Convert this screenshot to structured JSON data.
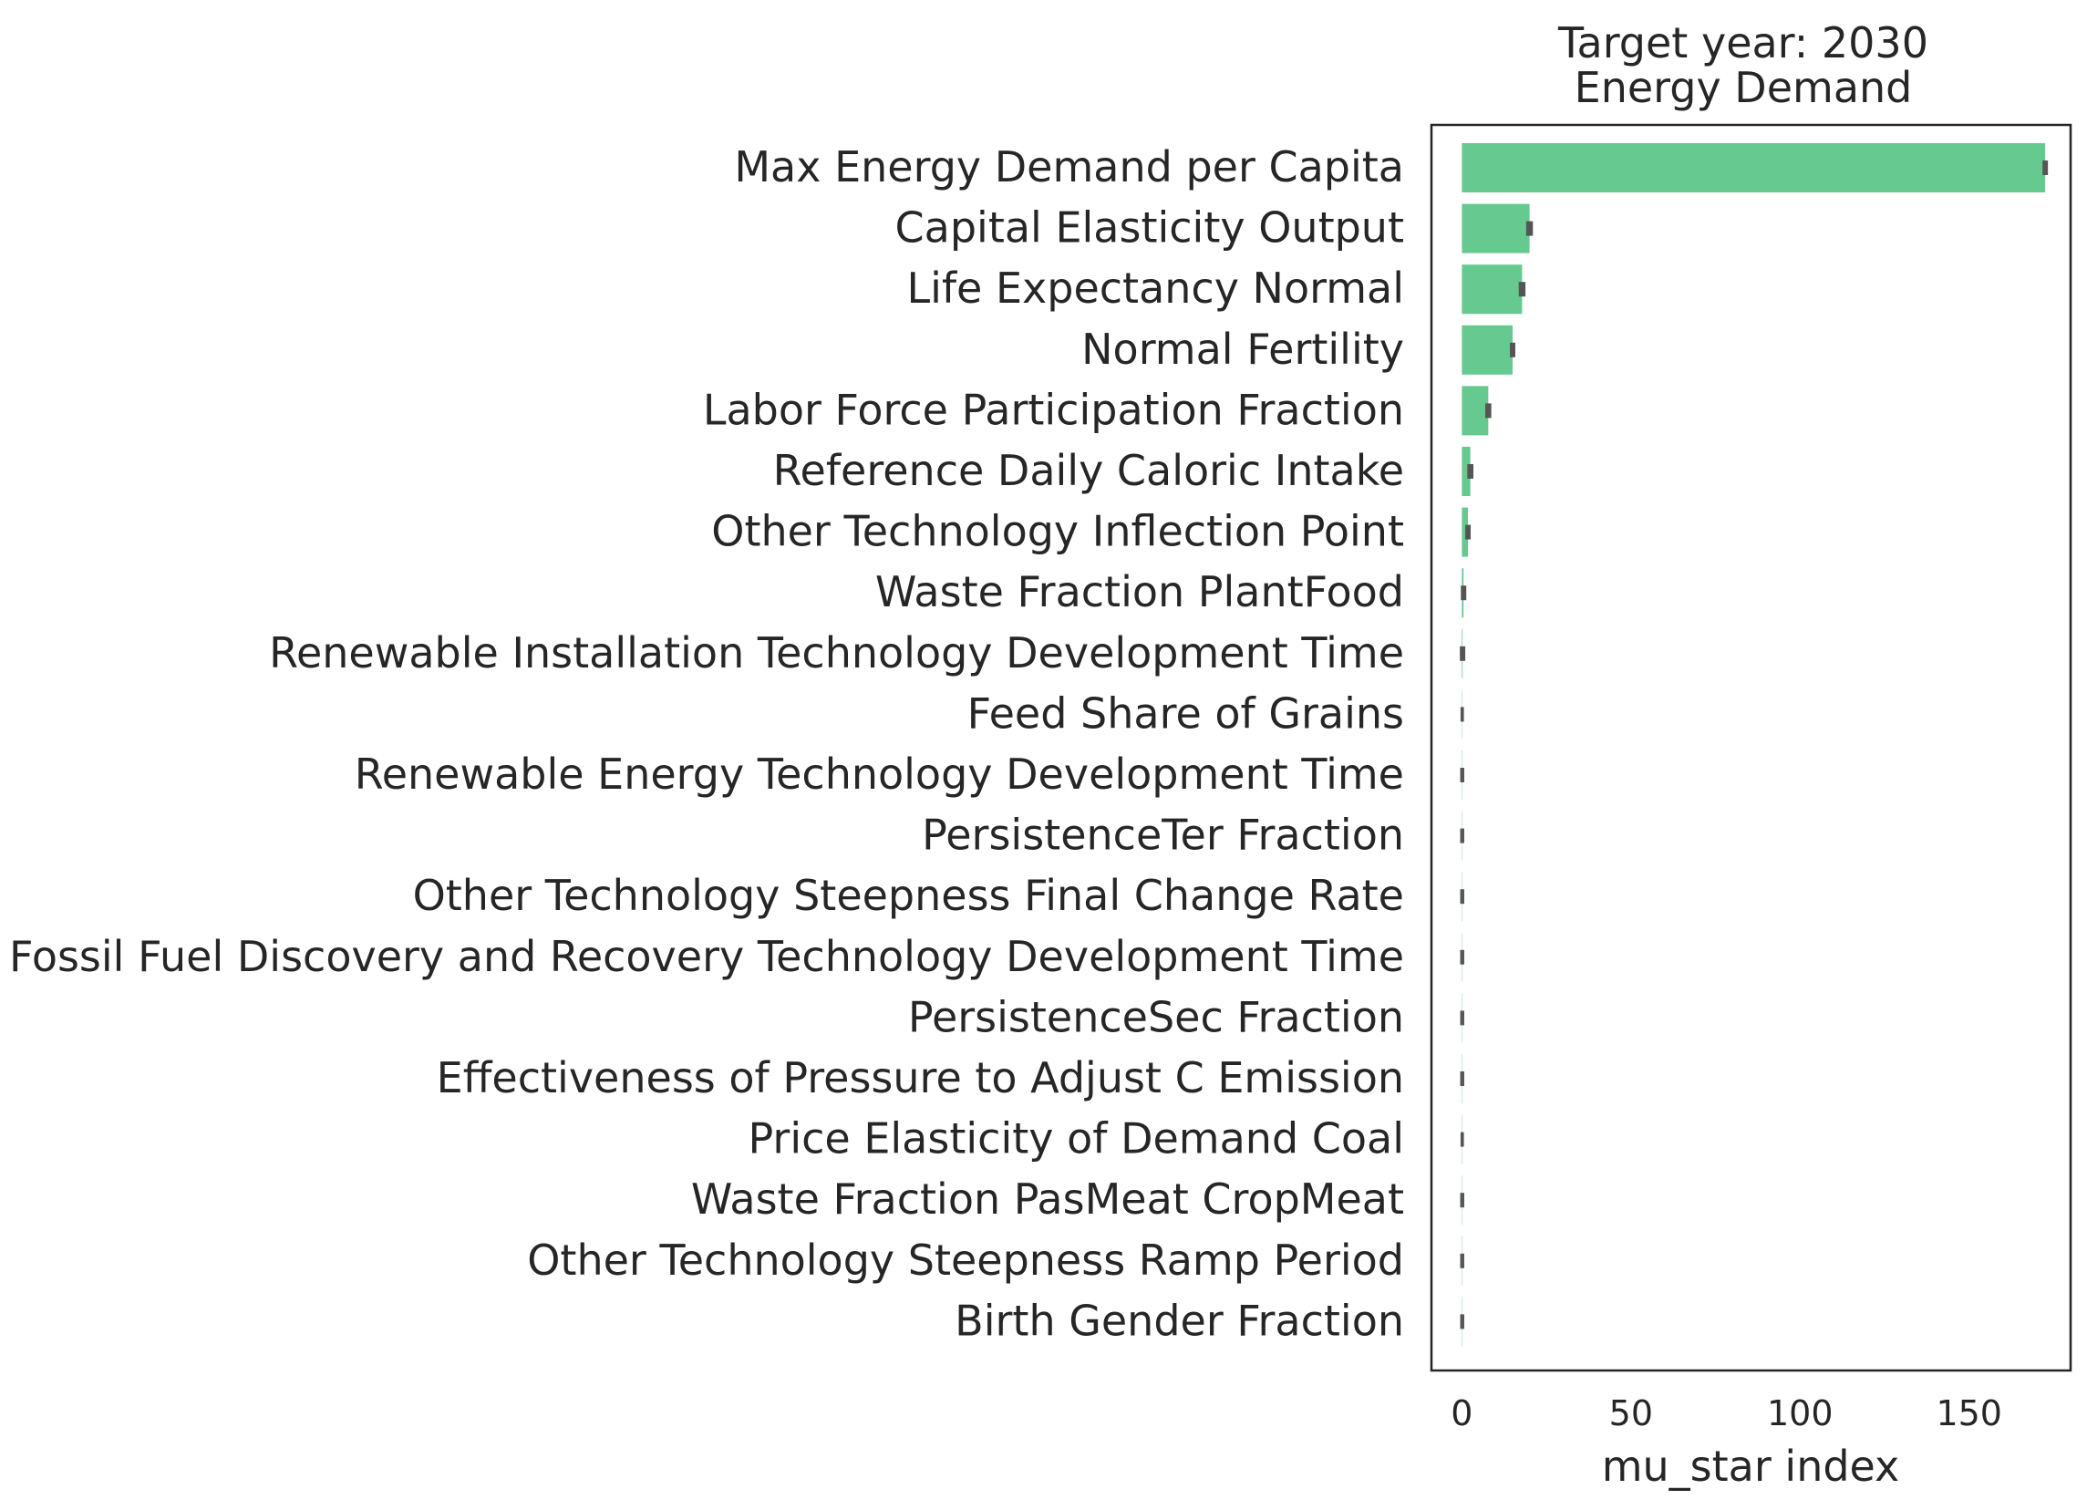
{
  "chart_data": {
    "type": "bar",
    "orientation": "horizontal",
    "title": "Target year: 2030",
    "subtitle": "Energy Demand",
    "xlabel": "mu_star index",
    "ylabel": "",
    "xlim": [
      -9,
      180
    ],
    "xticks": [
      0,
      50,
      100,
      150
    ],
    "grid": false,
    "bar_color": "#66c990",
    "error_color": "#555555",
    "categories": [
      "Max Energy Demand per Capita",
      "Capital Elasticity Output",
      "Life Expectancy Normal",
      "Normal Fertility",
      "Labor Force Participation Fraction",
      "Reference Daily Caloric Intake",
      "Other Technology Inflection Point",
      "Waste Fraction PlantFood",
      "Renewable Installation Technology Development Time",
      "Feed Share of Grains",
      "Renewable Energy Technology Development Time",
      "PersistenceTer Fraction",
      "Other Technology Steepness Final Change Rate",
      "Fossil Fuel Discovery and Recovery Technology Development Time",
      "PersistenceSec Fraction",
      "Effectiveness of Pressure to Adjust C Emission",
      "Price Elasticity of Demand Coal",
      "Waste Fraction PasMeat CropMeat",
      "Other Technology Steepness Ramp Period",
      "Birth Gender Fraction"
    ],
    "values": [
      172.5,
      20.0,
      17.8,
      15.0,
      7.8,
      2.5,
      1.8,
      0.5,
      0.2,
      0.1,
      0.1,
      0.1,
      0.1,
      0.1,
      0.1,
      0.1,
      0.1,
      0.1,
      0.1,
      0.1
    ],
    "errors": [
      0.8,
      1.0,
      1.0,
      0.8,
      0.9,
      0.9,
      0.8,
      0.8,
      0.8,
      0.5,
      0.6,
      0.6,
      0.6,
      0.6,
      0.6,
      0.6,
      0.5,
      0.6,
      0.6,
      0.6
    ]
  }
}
